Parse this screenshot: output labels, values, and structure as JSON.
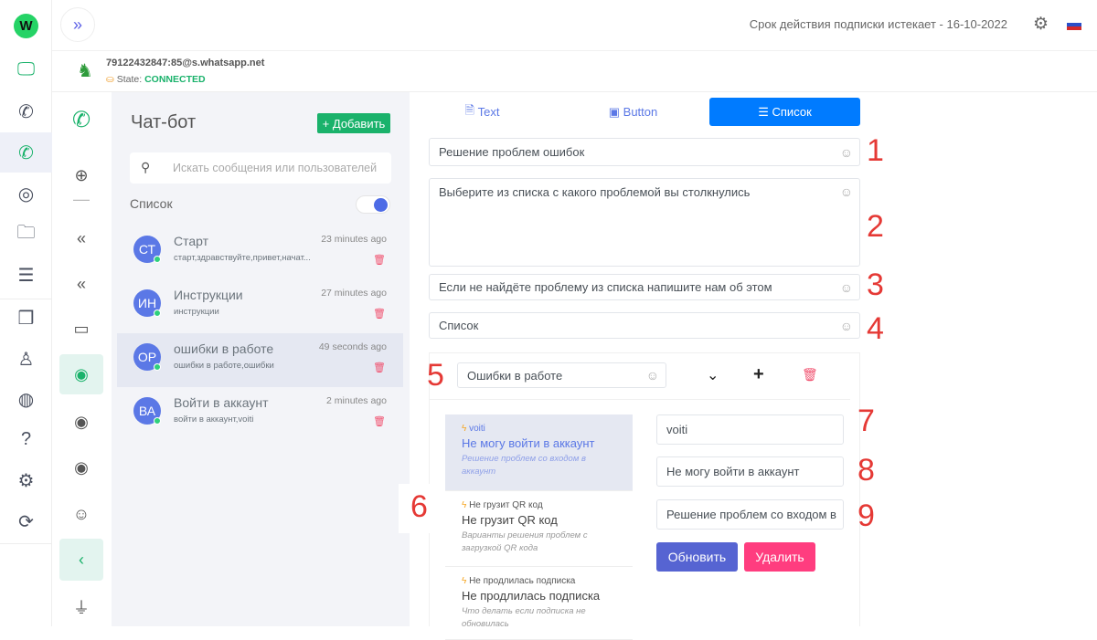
{
  "header": {
    "subscription": "Срок действия подписки истекает - 16-10-2022",
    "expand_icon": "»"
  },
  "account": {
    "jid": "79122432847:85@s.whatsapp.net",
    "state_label": "State:",
    "state_value": "CONNECTED"
  },
  "rail": {
    "logo": "W"
  },
  "list": {
    "title": "Чат-бот",
    "add_label": "Добавить",
    "search_placeholder": "Искать сообщения или пользователей",
    "toggle_label": "Список",
    "toggle_on": true,
    "items": [
      {
        "initials": "СТ",
        "name": "Старт",
        "time": "23 minutes ago",
        "sub": "старт,здравствуйте,привет,начат..."
      },
      {
        "initials": "ИН",
        "name": "Инструкции",
        "time": "27 minutes ago",
        "sub": "инструкции"
      },
      {
        "initials": "ОР",
        "name": "ошибки в работе",
        "time": "49 seconds ago",
        "sub": "ошибки в работе,ошибки"
      },
      {
        "initials": "ВА",
        "name": "Войти в аккаунт",
        "time": "2 minutes ago",
        "sub": "войти в аккаунт,voiti"
      }
    ]
  },
  "tabs": [
    {
      "label": "Text"
    },
    {
      "label": "Button"
    },
    {
      "label": "Список"
    }
  ],
  "form": {
    "title": "Решение проблем ошибок",
    "body": "Выберите из списка с какого проблемой вы столкнулись",
    "footer": "Если не найдёте проблему из списка напишите нам об этом",
    "button": "Список",
    "section": "Ошибки в работе"
  },
  "rows": [
    {
      "id": "voiti",
      "title": "Не могу войти в аккаунт",
      "desc": "Решение проблем со входом в аккаунт"
    },
    {
      "id": "Не грузит QR код",
      "title": "Не грузит QR код",
      "desc": "Варианты решения проблем с загрузкой QR кода"
    },
    {
      "id": "Не продлилась подписка",
      "title": "Не продлилась подписка",
      "desc": "Что делать если подписка не обновилась"
    }
  ],
  "edit": {
    "id": "voiti",
    "title": "Не могу войти в аккаунт",
    "desc": "Решение проблем со входом в",
    "update": "Обновить",
    "delete": "Удалить"
  },
  "markers": [
    "1",
    "2",
    "3",
    "4",
    "5",
    "6",
    "7",
    "8",
    "9"
  ],
  "colors": {
    "primary": "#007bff",
    "green": "#1ab26b",
    "update": "#5664d2",
    "delete": "#ff3d7f",
    "connected": "#1ab26b"
  }
}
